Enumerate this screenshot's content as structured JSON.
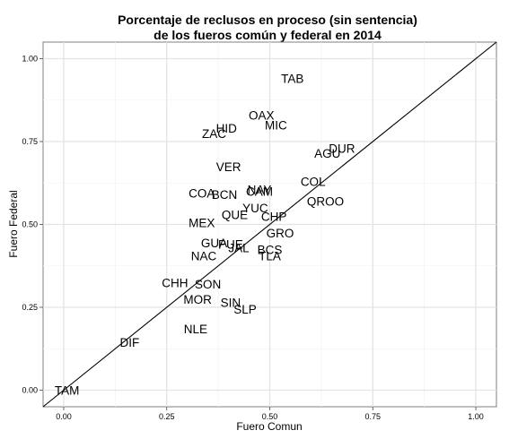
{
  "chart_data": {
    "type": "scatter",
    "title_lines": [
      "Porcentaje de reclusos en proceso (sin sentencia)",
      "de los fueros común y federal en 2014"
    ],
    "xlabel": "Fuero Comun",
    "ylabel": "Fuero Federal",
    "xlim": [
      -0.05,
      1.05
    ],
    "ylim": [
      -0.05,
      1.05
    ],
    "x_ticks": [
      0.0,
      0.25,
      0.5,
      0.75,
      1.0
    ],
    "x_tick_labels": [
      "0.00",
      "0.25",
      "0.50",
      "0.75",
      "1.00"
    ],
    "y_ticks": [
      0.0,
      0.25,
      0.5,
      0.75,
      1.0
    ],
    "y_tick_labels": [
      "0.00",
      "0.25",
      "0.50",
      "0.75",
      "1.00"
    ],
    "grid": true,
    "reference_line": "y = x",
    "points": [
      {
        "label": "TAB",
        "x": 0.555,
        "y": 0.94
      },
      {
        "label": "OAX",
        "x": 0.48,
        "y": 0.83
      },
      {
        "label": "MIC",
        "x": 0.515,
        "y": 0.8
      },
      {
        "label": "HID",
        "x": 0.395,
        "y": 0.79
      },
      {
        "label": "ZAC",
        "x": 0.365,
        "y": 0.775
      },
      {
        "label": "DUR",
        "x": 0.675,
        "y": 0.73
      },
      {
        "label": "AGU",
        "x": 0.64,
        "y": 0.715
      },
      {
        "label": "VER",
        "x": 0.4,
        "y": 0.675
      },
      {
        "label": "COL",
        "x": 0.605,
        "y": 0.63
      },
      {
        "label": "NAY",
        "x": 0.475,
        "y": 0.605
      },
      {
        "label": "CAM",
        "x": 0.475,
        "y": 0.6
      },
      {
        "label": "COA",
        "x": 0.335,
        "y": 0.595
      },
      {
        "label": "BCN",
        "x": 0.39,
        "y": 0.59
      },
      {
        "label": "QROO",
        "x": 0.635,
        "y": 0.57
      },
      {
        "label": "YUC",
        "x": 0.465,
        "y": 0.55
      },
      {
        "label": "QUE",
        "x": 0.415,
        "y": 0.53
      },
      {
        "label": "CHP",
        "x": 0.51,
        "y": 0.525
      },
      {
        "label": "MEX",
        "x": 0.335,
        "y": 0.505
      },
      {
        "label": "GRO",
        "x": 0.525,
        "y": 0.475
      },
      {
        "label": "GUA",
        "x": 0.365,
        "y": 0.445
      },
      {
        "label": "PUE",
        "x": 0.405,
        "y": 0.44
      },
      {
        "label": "JAL",
        "x": 0.425,
        "y": 0.43
      },
      {
        "label": "BCS",
        "x": 0.5,
        "y": 0.425
      },
      {
        "label": "TLA",
        "x": 0.5,
        "y": 0.405
      },
      {
        "label": "NAC",
        "x": 0.34,
        "y": 0.405
      },
      {
        "label": "CHH",
        "x": 0.27,
        "y": 0.325
      },
      {
        "label": "SON",
        "x": 0.35,
        "y": 0.32
      },
      {
        "label": "MOR",
        "x": 0.325,
        "y": 0.275
      },
      {
        "label": "SIN",
        "x": 0.405,
        "y": 0.265
      },
      {
        "label": "SLP",
        "x": 0.44,
        "y": 0.245
      },
      {
        "label": "NLE",
        "x": 0.32,
        "y": 0.185
      },
      {
        "label": "DIF",
        "x": 0.16,
        "y": 0.145
      },
      {
        "label": "TAM",
        "x": 0.008,
        "y": 0.0
      }
    ]
  }
}
